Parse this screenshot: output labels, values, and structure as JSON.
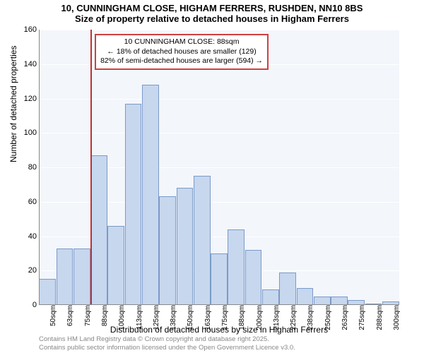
{
  "title": {
    "line1": "10, CUNNINGHAM CLOSE, HIGHAM FERRERS, RUSHDEN, NN10 8BS",
    "line2": "Size of property relative to detached houses in Higham Ferrers"
  },
  "ylabel": "Number of detached properties",
  "xlabel": "Distribution of detached houses by size in Higham Ferrers",
  "chart": {
    "type": "bar",
    "background_color": "#f3f6fb",
    "grid_color": "#ffffff",
    "bar_fill": "#c7d7ee",
    "bar_stroke": "#7a9ac9",
    "ylim": [
      0,
      160
    ],
    "ytick_step": 20,
    "xticks": [
      "50sqm",
      "63sqm",
      "75sqm",
      "88sqm",
      "100sqm",
      "113sqm",
      "125sqm",
      "138sqm",
      "150sqm",
      "163sqm",
      "175sqm",
      "188sqm",
      "200sqm",
      "213sqm",
      "225sqm",
      "238sqm",
      "250sqm",
      "263sqm",
      "275sqm",
      "288sqm",
      "300sqm"
    ],
    "values": [
      15,
      33,
      33,
      87,
      46,
      117,
      128,
      63,
      68,
      75,
      30,
      44,
      32,
      9,
      19,
      10,
      5,
      5,
      3,
      0,
      2
    ],
    "marker": {
      "color": "#c03030",
      "position_index": 3
    }
  },
  "annotation": {
    "line1": "10 CUNNINGHAM CLOSE: 88sqm",
    "line2": "← 18% of detached houses are smaller (129)",
    "line3": "82% of semi-detached houses are larger (594) →",
    "border_color": "#d04040"
  },
  "footer": {
    "line1": "Contains HM Land Registry data © Crown copyright and database right 2025.",
    "line2": "Contains public sector information licensed under the Open Government Licence v3.0."
  }
}
